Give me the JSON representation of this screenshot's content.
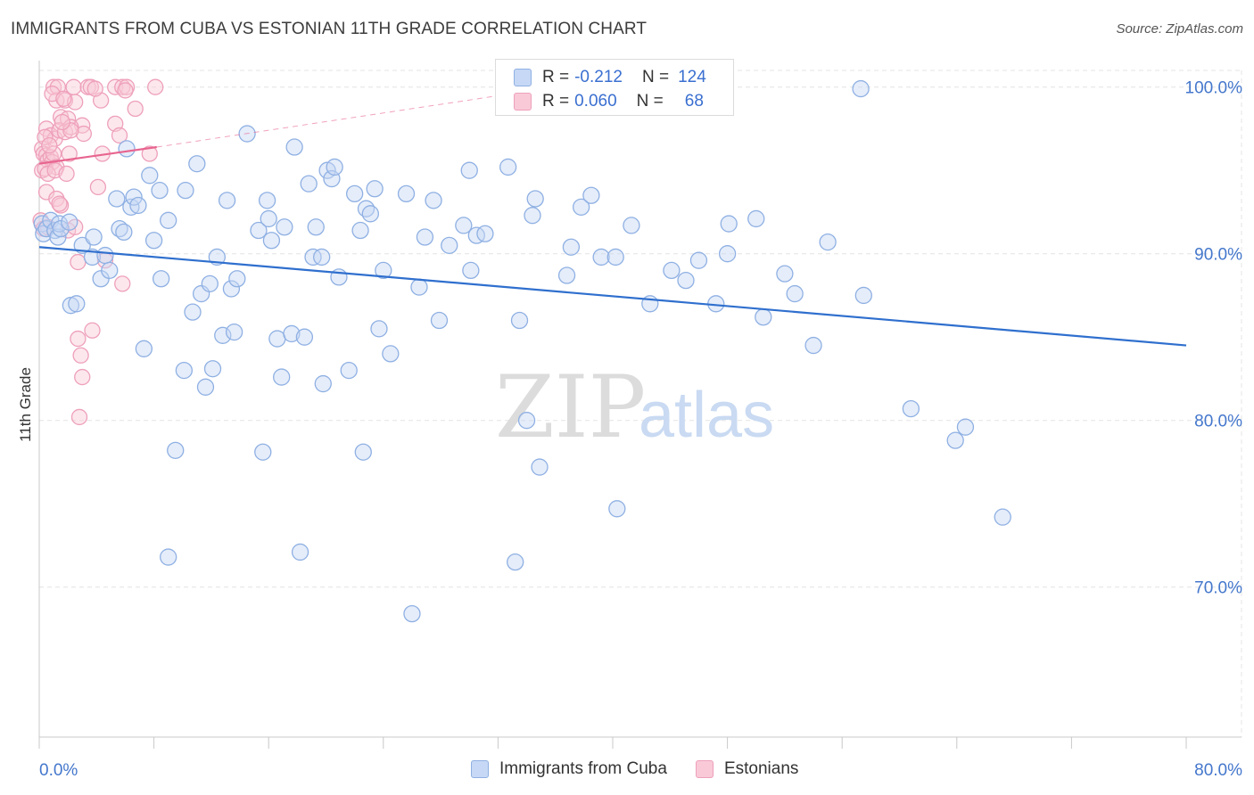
{
  "title": "IMMIGRANTS FROM CUBA VS ESTONIAN 11TH GRADE CORRELATION CHART",
  "source": "Source: ZipAtlas.com",
  "watermark": {
    "zip": "ZIP",
    "atlas": "atlas"
  },
  "colors": {
    "blue_fill": "#c6d8f5",
    "blue_stroke": "#8fb0e3",
    "blue_line": "#2f6fce",
    "pink_fill": "#f9c9d8",
    "pink_stroke": "#eea0ba",
    "pink_line": "#e8648f",
    "axis_label": "#4477cc",
    "grid": "#e4e4e4"
  },
  "legend_top": {
    "series": [
      {
        "r_label": "R =",
        "r_value": "-0.212",
        "n_label": "N =",
        "n_value": "124"
      },
      {
        "r_label": "R =",
        "r_value": "0.060",
        "n_label": "N =",
        "n_value": "68"
      }
    ]
  },
  "legend_bottom": [
    "Immigrants from Cuba",
    "Estonians"
  ],
  "chart_data": {
    "type": "scatter",
    "title": "IMMIGRANTS FROM CUBA VS ESTONIAN 11TH GRADE CORRELATION CHART",
    "xlabel": "",
    "ylabel": "11th Grade",
    "xlim": [
      0,
      80
    ],
    "ylim": [
      61,
      101
    ],
    "x_tick_labels": [
      "0.0%",
      "80.0%"
    ],
    "y_ticks": [
      70,
      80,
      90,
      100
    ],
    "y_tick_labels": [
      "70.0%",
      "80.0%",
      "90.0%",
      "100.0%"
    ],
    "grid": true,
    "legend": "top-center",
    "series": [
      {
        "name": "Immigrants from Cuba",
        "r": -0.212,
        "n": 124,
        "trend": {
          "x": [
            0,
            80
          ],
          "y": [
            90.4,
            84.5
          ]
        },
        "points": [
          [
            0.2,
            91.8
          ],
          [
            0.3,
            91.2
          ],
          [
            0.5,
            91.5
          ],
          [
            0.8,
            92.0
          ],
          [
            1.1,
            91.4
          ],
          [
            1.3,
            91.0
          ],
          [
            1.4,
            91.8
          ],
          [
            1.5,
            91.5
          ],
          [
            2.1,
            91.9
          ],
          [
            2.2,
            86.9
          ],
          [
            3.0,
            90.5
          ],
          [
            2.6,
            87.0
          ],
          [
            3.7,
            89.8
          ],
          [
            3.8,
            91.0
          ],
          [
            4.3,
            88.5
          ],
          [
            4.6,
            89.9
          ],
          [
            4.9,
            89.0
          ],
          [
            5.4,
            93.3
          ],
          [
            5.6,
            91.5
          ],
          [
            5.9,
            91.3
          ],
          [
            6.1,
            96.3
          ],
          [
            6.4,
            92.8
          ],
          [
            6.6,
            93.4
          ],
          [
            6.9,
            92.9
          ],
          [
            7.3,
            84.3
          ],
          [
            7.7,
            94.7
          ],
          [
            8.0,
            90.8
          ],
          [
            8.4,
            93.8
          ],
          [
            8.5,
            88.5
          ],
          [
            9.0,
            92.0
          ],
          [
            9.5,
            78.2
          ],
          [
            10.1,
            83.0
          ],
          [
            10.2,
            93.8
          ],
          [
            10.7,
            86.5
          ],
          [
            11.0,
            95.4
          ],
          [
            11.3,
            87.6
          ],
          [
            11.6,
            82.0
          ],
          [
            11.9,
            88.2
          ],
          [
            12.1,
            83.1
          ],
          [
            12.4,
            89.8
          ],
          [
            12.8,
            85.1
          ],
          [
            13.1,
            93.2
          ],
          [
            13.4,
            87.9
          ],
          [
            13.6,
            85.3
          ],
          [
            13.8,
            88.5
          ],
          [
            14.5,
            97.2
          ],
          [
            15.3,
            91.4
          ],
          [
            15.6,
            78.1
          ],
          [
            15.9,
            93.2
          ],
          [
            16.0,
            92.1
          ],
          [
            16.2,
            90.8
          ],
          [
            16.6,
            84.9
          ],
          [
            16.9,
            82.6
          ],
          [
            17.1,
            91.6
          ],
          [
            17.6,
            85.2
          ],
          [
            17.8,
            96.4
          ],
          [
            18.5,
            85.0
          ],
          [
            18.8,
            94.2
          ],
          [
            19.1,
            89.8
          ],
          [
            19.3,
            91.6
          ],
          [
            19.7,
            89.8
          ],
          [
            19.8,
            82.2
          ],
          [
            20.1,
            95.0
          ],
          [
            20.4,
            94.5
          ],
          [
            20.6,
            95.2
          ],
          [
            20.9,
            88.6
          ],
          [
            21.6,
            83.0
          ],
          [
            22.0,
            93.6
          ],
          [
            22.4,
            91.4
          ],
          [
            22.6,
            78.1
          ],
          [
            22.8,
            92.7
          ],
          [
            23.1,
            92.4
          ],
          [
            23.4,
            93.9
          ],
          [
            23.7,
            85.5
          ],
          [
            24.0,
            89.0
          ],
          [
            24.5,
            84.0
          ],
          [
            25.6,
            93.6
          ],
          [
            26.5,
            88.0
          ],
          [
            26.9,
            91.0
          ],
          [
            27.5,
            93.2
          ],
          [
            27.9,
            86.0
          ],
          [
            28.6,
            90.5
          ],
          [
            29.6,
            91.7
          ],
          [
            30.0,
            95.0
          ],
          [
            30.1,
            89.0
          ],
          [
            30.5,
            91.1
          ],
          [
            31.1,
            91.2
          ],
          [
            32.7,
            95.2
          ],
          [
            33.5,
            86.0
          ],
          [
            34.0,
            80.0
          ],
          [
            34.4,
            92.3
          ],
          [
            34.6,
            93.3
          ],
          [
            34.9,
            77.2
          ],
          [
            36.8,
            88.7
          ],
          [
            37.1,
            90.4
          ],
          [
            37.8,
            92.8
          ],
          [
            38.5,
            93.5
          ],
          [
            39.2,
            89.8
          ],
          [
            40.2,
            89.8
          ],
          [
            41.3,
            91.7
          ],
          [
            42.6,
            87.0
          ],
          [
            44.1,
            89.0
          ],
          [
            45.1,
            88.4
          ],
          [
            46.0,
            89.6
          ],
          [
            47.2,
            87.0
          ],
          [
            48.0,
            90.0
          ],
          [
            48.1,
            91.8
          ],
          [
            50.0,
            92.1
          ],
          [
            50.5,
            86.2
          ],
          [
            52.0,
            88.8
          ],
          [
            52.7,
            87.6
          ],
          [
            54.0,
            84.5
          ],
          [
            55.0,
            90.7
          ],
          [
            57.3,
            99.9
          ],
          [
            57.5,
            87.5
          ],
          [
            60.8,
            80.7
          ],
          [
            63.9,
            78.8
          ],
          [
            64.6,
            79.6
          ],
          [
            67.2,
            74.2
          ],
          [
            18.2,
            72.1
          ],
          [
            9.0,
            71.8
          ],
          [
            33.2,
            71.5
          ],
          [
            40.3,
            74.7
          ],
          [
            26.0,
            68.4
          ]
        ]
      },
      {
        "name": "Estonians",
        "r": 0.06,
        "n": 68,
        "trend": {
          "x": [
            0,
            8.2
          ],
          "y": [
            95.4,
            96.4
          ]
        },
        "trend_dashed": {
          "x": [
            8.2,
            36
          ],
          "y": [
            96.4,
            100.0
          ]
        },
        "points": [
          [
            1.0,
            100.0
          ],
          [
            1.3,
            100.0
          ],
          [
            2.4,
            100.0
          ],
          [
            3.4,
            100.0
          ],
          [
            3.6,
            100.0
          ],
          [
            5.3,
            100.0
          ],
          [
            5.8,
            100.0
          ],
          [
            6.1,
            100.0
          ],
          [
            8.1,
            100.0
          ],
          [
            1.2,
            99.2
          ],
          [
            1.8,
            99.2
          ],
          [
            2.5,
            99.1
          ],
          [
            4.3,
            99.2
          ],
          [
            6.7,
            98.7
          ],
          [
            1.5,
            98.2
          ],
          [
            2.0,
            98.1
          ],
          [
            3.0,
            97.7
          ],
          [
            5.3,
            97.8
          ],
          [
            0.5,
            97.5
          ],
          [
            0.8,
            97.1
          ],
          [
            1.1,
            96.9
          ],
          [
            1.4,
            97.4
          ],
          [
            1.8,
            97.3
          ],
          [
            2.2,
            97.6
          ],
          [
            5.6,
            97.1
          ],
          [
            0.2,
            96.3
          ],
          [
            0.3,
            96.0
          ],
          [
            0.5,
            95.9
          ],
          [
            0.6,
            95.6
          ],
          [
            0.8,
            95.8
          ],
          [
            0.9,
            95.5
          ],
          [
            1.0,
            96.0
          ],
          [
            1.2,
            95.2
          ],
          [
            2.1,
            96.0
          ],
          [
            4.4,
            96.0
          ],
          [
            7.7,
            96.0
          ],
          [
            0.2,
            95.0
          ],
          [
            0.4,
            95.1
          ],
          [
            0.6,
            94.8
          ],
          [
            1.1,
            95.0
          ],
          [
            1.9,
            94.8
          ],
          [
            0.5,
            93.7
          ],
          [
            1.2,
            93.3
          ],
          [
            1.5,
            92.9
          ],
          [
            4.1,
            94.0
          ],
          [
            0.1,
            92.0
          ],
          [
            0.3,
            91.5
          ],
          [
            0.6,
            91.6
          ],
          [
            2.0,
            91.4
          ],
          [
            2.5,
            91.6
          ],
          [
            1.4,
            93.0
          ],
          [
            2.7,
            89.5
          ],
          [
            4.6,
            89.6
          ],
          [
            5.8,
            88.2
          ],
          [
            3.7,
            85.4
          ],
          [
            2.7,
            84.9
          ],
          [
            2.9,
            83.9
          ],
          [
            3.0,
            82.6
          ],
          [
            2.8,
            80.2
          ],
          [
            3.1,
            97.2
          ],
          [
            2.2,
            97.4
          ],
          [
            0.9,
            99.6
          ],
          [
            3.9,
            99.9
          ],
          [
            6.0,
            99.8
          ],
          [
            1.7,
            99.3
          ],
          [
            0.4,
            97.0
          ],
          [
            0.7,
            96.5
          ],
          [
            1.6,
            97.9
          ]
        ]
      }
    ]
  }
}
